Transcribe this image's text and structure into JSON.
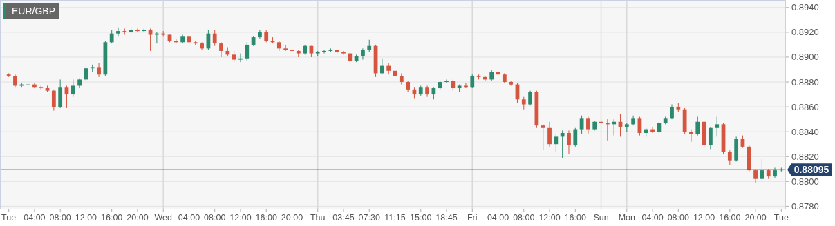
{
  "chart_data": {
    "type": "candlestick",
    "title": "EUR/GBP",
    "categories": [
      "Tue",
      null,
      null,
      null,
      "04:00",
      null,
      null,
      null,
      "08:00",
      null,
      null,
      null,
      "12:00",
      null,
      null,
      null,
      "16:00",
      null,
      null,
      null,
      "20:00",
      null,
      null,
      null,
      "Wed",
      null,
      null,
      null,
      "04:00",
      null,
      null,
      null,
      "08:00",
      null,
      null,
      null,
      "12:00",
      null,
      null,
      null,
      "16:00",
      null,
      null,
      null,
      "20:00",
      null,
      null,
      null,
      "Thu",
      null,
      null,
      null,
      "03:45",
      null,
      null,
      null,
      "07:30",
      null,
      null,
      null,
      "11:15",
      null,
      null,
      null,
      "15:00",
      null,
      null,
      null,
      "18:45",
      null,
      null,
      null,
      "Fri",
      null,
      null,
      null,
      "04:00",
      null,
      null,
      null,
      "08:00",
      null,
      null,
      null,
      "12:00",
      null,
      null,
      null,
      "16:00",
      null,
      null,
      null,
      "Sun",
      null,
      null,
      null,
      "Mon",
      null,
      null,
      null,
      "04:00",
      null,
      null,
      null,
      "08:00",
      null,
      null,
      null,
      "12:00",
      null,
      null,
      null,
      "16:00",
      null,
      null,
      null,
      "20:00",
      null,
      null,
      null,
      "Tue"
    ],
    "ohlc": [
      [
        0.8886,
        0.8887,
        0.8884,
        0.8885
      ],
      [
        0.8885,
        0.8886,
        0.8876,
        0.8877
      ],
      [
        0.8877,
        0.8879,
        0.8876,
        0.8878
      ],
      [
        0.8878,
        0.8879,
        0.8877,
        0.8878
      ],
      [
        0.8878,
        0.8879,
        0.8875,
        0.8876
      ],
      [
        0.8876,
        0.8877,
        0.8874,
        0.8875
      ],
      [
        0.8875,
        0.8877,
        0.8872,
        0.8873
      ],
      [
        0.8873,
        0.8874,
        0.8857,
        0.886
      ],
      [
        0.886,
        0.8882,
        0.8859,
        0.8876
      ],
      [
        0.8876,
        0.8877,
        0.8859,
        0.887
      ],
      [
        0.887,
        0.8882,
        0.8868,
        0.8877
      ],
      [
        0.8877,
        0.8883,
        0.8875,
        0.8882
      ],
      [
        0.8882,
        0.8893,
        0.8881,
        0.8891
      ],
      [
        0.8891,
        0.8894,
        0.8888,
        0.8892
      ],
      [
        0.8892,
        0.8895,
        0.8884,
        0.8886
      ],
      [
        0.8886,
        0.8913,
        0.8885,
        0.8912
      ],
      [
        0.8912,
        0.8922,
        0.8911,
        0.8919
      ],
      [
        0.8919,
        0.8924,
        0.8917,
        0.8921
      ],
      [
        0.8921,
        0.8923,
        0.8918,
        0.892
      ],
      [
        0.892,
        0.8924,
        0.8919,
        0.8922
      ],
      [
        0.8922,
        0.8923,
        0.892,
        0.8921
      ],
      [
        0.8921,
        0.8923,
        0.892,
        0.8922
      ],
      [
        0.8922,
        0.8923,
        0.8905,
        0.8918
      ],
      [
        0.8918,
        0.892,
        0.8911,
        0.8919
      ],
      [
        0.8919,
        0.8921,
        0.8917,
        0.8918
      ],
      [
        0.8918,
        0.8918,
        0.8912,
        0.8913
      ],
      [
        0.8913,
        0.8915,
        0.8911,
        0.8912
      ],
      [
        0.8912,
        0.8918,
        0.8911,
        0.8917
      ],
      [
        0.8917,
        0.8918,
        0.8911,
        0.8912
      ],
      [
        0.8912,
        0.8913,
        0.891,
        0.8911
      ],
      [
        0.8911,
        0.8912,
        0.8906,
        0.8907
      ],
      [
        0.8907,
        0.8922,
        0.8906,
        0.8919
      ],
      [
        0.8919,
        0.8922,
        0.8909,
        0.8911
      ],
      [
        0.8911,
        0.8912,
        0.89,
        0.8905
      ],
      [
        0.8905,
        0.8908,
        0.8901,
        0.8902
      ],
      [
        0.8902,
        0.8905,
        0.8896,
        0.8898
      ],
      [
        0.8898,
        0.8903,
        0.8896,
        0.8899
      ],
      [
        0.8899,
        0.8912,
        0.8897,
        0.891
      ],
      [
        0.891,
        0.8917,
        0.8909,
        0.8916
      ],
      [
        0.8916,
        0.8922,
        0.8915,
        0.892
      ],
      [
        0.892,
        0.8922,
        0.8912,
        0.8913
      ],
      [
        0.8913,
        0.8916,
        0.8911,
        0.8912
      ],
      [
        0.8912,
        0.8913,
        0.8905,
        0.8907
      ],
      [
        0.8907,
        0.891,
        0.8905,
        0.8906
      ],
      [
        0.8906,
        0.8908,
        0.8904,
        0.8905
      ],
      [
        0.8905,
        0.8906,
        0.89,
        0.8903
      ],
      [
        0.8903,
        0.891,
        0.8902,
        0.8909
      ],
      [
        0.8909,
        0.8909,
        0.89,
        0.8903
      ],
      [
        0.8903,
        0.8905,
        0.8901,
        0.8904
      ],
      [
        0.8904,
        0.8906,
        0.8903,
        0.8905
      ],
      [
        0.8905,
        0.8907,
        0.8904,
        0.8906
      ],
      [
        0.8906,
        0.8906,
        0.8903,
        0.8904
      ],
      [
        0.8904,
        0.8905,
        0.8902,
        0.8903
      ],
      [
        0.8903,
        0.8903,
        0.8896,
        0.8897
      ],
      [
        0.8897,
        0.8902,
        0.8896,
        0.8901
      ],
      [
        0.8901,
        0.8907,
        0.8898,
        0.8906
      ],
      [
        0.8906,
        0.8914,
        0.8904,
        0.8909
      ],
      [
        0.8909,
        0.891,
        0.8884,
        0.8887
      ],
      [
        0.8887,
        0.8899,
        0.8886,
        0.8893
      ],
      [
        0.8893,
        0.8895,
        0.8886,
        0.8889
      ],
      [
        0.8889,
        0.8894,
        0.8884,
        0.8885
      ],
      [
        0.8885,
        0.8887,
        0.8878,
        0.888
      ],
      [
        0.888,
        0.8881,
        0.8872,
        0.8874
      ],
      [
        0.8874,
        0.8876,
        0.8867,
        0.887
      ],
      [
        0.887,
        0.8877,
        0.8869,
        0.8876
      ],
      [
        0.8876,
        0.8877,
        0.8868,
        0.887
      ],
      [
        0.887,
        0.8876,
        0.8866,
        0.8875
      ],
      [
        0.8875,
        0.8881,
        0.8874,
        0.888
      ],
      [
        0.888,
        0.8882,
        0.8879,
        0.8881
      ],
      [
        0.8881,
        0.8882,
        0.8873,
        0.8875
      ],
      [
        0.8875,
        0.8878,
        0.8872,
        0.8877
      ],
      [
        0.8877,
        0.8879,
        0.8875,
        0.8876
      ],
      [
        0.8876,
        0.8886,
        0.8875,
        0.8885
      ],
      [
        0.8885,
        0.8886,
        0.8882,
        0.8884
      ],
      [
        0.8884,
        0.8885,
        0.8881,
        0.8882
      ],
      [
        0.8882,
        0.889,
        0.8881,
        0.8888
      ],
      [
        0.8888,
        0.8889,
        0.8885,
        0.8886
      ],
      [
        0.8886,
        0.8887,
        0.8879,
        0.888
      ],
      [
        0.888,
        0.8881,
        0.8877,
        0.8878
      ],
      [
        0.8878,
        0.8879,
        0.8863,
        0.8866
      ],
      [
        0.8866,
        0.8868,
        0.8858,
        0.8862
      ],
      [
        0.8862,
        0.8873,
        0.8861,
        0.8872
      ],
      [
        0.8872,
        0.8873,
        0.8843,
        0.8845
      ],
      [
        0.8845,
        0.8846,
        0.8825,
        0.8843
      ],
      [
        0.8843,
        0.8848,
        0.8828,
        0.883
      ],
      [
        0.883,
        0.8838,
        0.8824,
        0.8836
      ],
      [
        0.8836,
        0.8841,
        0.8819,
        0.8839
      ],
      [
        0.8839,
        0.8841,
        0.8822,
        0.8829
      ],
      [
        0.8829,
        0.8843,
        0.8828,
        0.8842
      ],
      [
        0.8842,
        0.8853,
        0.8838,
        0.8851
      ],
      [
        0.8851,
        0.8852,
        0.8838,
        0.8842
      ],
      [
        0.8842,
        0.8849,
        0.8841,
        0.8848
      ],
      [
        0.8848,
        0.885,
        0.8845,
        0.8847
      ],
      [
        0.8847,
        0.885,
        0.8833,
        0.8846
      ],
      [
        0.8846,
        0.885,
        0.8837,
        0.8848
      ],
      [
        0.8848,
        0.8854,
        0.8836,
        0.8844
      ],
      [
        0.8844,
        0.8847,
        0.884,
        0.8846
      ],
      [
        0.8846,
        0.8853,
        0.8845,
        0.8851
      ],
      [
        0.8851,
        0.8852,
        0.8837,
        0.8839
      ],
      [
        0.8839,
        0.8843,
        0.8836,
        0.8842
      ],
      [
        0.8842,
        0.8844,
        0.8839,
        0.884
      ],
      [
        0.884,
        0.8848,
        0.8839,
        0.8847
      ],
      [
        0.8847,
        0.8852,
        0.8846,
        0.8851
      ],
      [
        0.8851,
        0.8862,
        0.885,
        0.886
      ],
      [
        0.886,
        0.8863,
        0.8856,
        0.8858
      ],
      [
        0.8858,
        0.8859,
        0.8838,
        0.884
      ],
      [
        0.884,
        0.8842,
        0.8832,
        0.8838
      ],
      [
        0.8838,
        0.8852,
        0.8837,
        0.8848
      ],
      [
        0.8848,
        0.8849,
        0.8828,
        0.8829
      ],
      [
        0.8829,
        0.8844,
        0.8826,
        0.8843
      ],
      [
        0.8843,
        0.8852,
        0.8836,
        0.8846
      ],
      [
        0.8846,
        0.8847,
        0.8822,
        0.8824
      ],
      [
        0.8824,
        0.8825,
        0.8813,
        0.8817
      ],
      [
        0.8817,
        0.8836,
        0.8816,
        0.8834
      ],
      [
        0.8834,
        0.8837,
        0.8827,
        0.8828
      ],
      [
        0.8828,
        0.8829,
        0.8808,
        0.8809
      ],
      [
        0.8809,
        0.881,
        0.8799,
        0.8802
      ],
      [
        0.8802,
        0.8818,
        0.8801,
        0.8809
      ],
      [
        0.8809,
        0.881,
        0.8802,
        0.8804
      ],
      [
        0.8804,
        0.8811,
        0.8803,
        0.8809
      ],
      [
        0.8809,
        0.8811,
        0.8808,
        0.88095
      ]
    ],
    "colors": [
      "#d5553f",
      "#d5553f",
      "#2b8a6e",
      "#2b8a6e",
      "#d5553f",
      "#d5553f",
      "#d5553f",
      "#d5553f",
      "#2b8a6e",
      "#d5553f",
      "#2b8a6e",
      "#2b8a6e",
      "#2b8a6e",
      "#2b8a6e",
      "#d5553f",
      "#2b8a6e",
      "#2b8a6e",
      "#2b8a6e",
      "#d5553f",
      "#2b8a6e",
      "#d5553f",
      "#2b8a6e",
      "#d5553f",
      "#2b8a6e",
      "#d5553f",
      "#d5553f",
      "#d5553f",
      "#2b8a6e",
      "#d5553f",
      "#d5553f",
      "#d5553f",
      "#2b8a6e",
      "#d5553f",
      "#d5553f",
      "#d5553f",
      "#d5553f",
      "#2b8a6e",
      "#2b8a6e",
      "#2b8a6e",
      "#2b8a6e",
      "#d5553f",
      "#d5553f",
      "#d5553f",
      "#d5553f",
      "#d5553f",
      "#d5553f",
      "#2b8a6e",
      "#d5553f",
      "#2b8a6e",
      "#2b8a6e",
      "#2b8a6e",
      "#d5553f",
      "#d5553f",
      "#d5553f",
      "#2b8a6e",
      "#2b8a6e",
      "#2b8a6e",
      "#d5553f",
      "#2b8a6e",
      "#d5553f",
      "#d5553f",
      "#d5553f",
      "#d5553f",
      "#d5553f",
      "#2b8a6e",
      "#d5553f",
      "#2b8a6e",
      "#2b8a6e",
      "#2b8a6e",
      "#d5553f",
      "#2b8a6e",
      "#d5553f",
      "#2b8a6e",
      "#d5553f",
      "#d5553f",
      "#2b8a6e",
      "#d5553f",
      "#d5553f",
      "#d5553f",
      "#d5553f",
      "#d5553f",
      "#2b8a6e",
      "#d5553f",
      "#d5553f",
      "#d5553f",
      "#2b8a6e",
      "#2b8a6e",
      "#d5553f",
      "#2b8a6e",
      "#2b8a6e",
      "#d5553f",
      "#2b8a6e",
      "#d5553f",
      "#d5553f",
      "#2b8a6e",
      "#d5553f",
      "#2b8a6e",
      "#2b8a6e",
      "#d5553f",
      "#2b8a6e",
      "#d5553f",
      "#2b8a6e",
      "#2b8a6e",
      "#2b8a6e",
      "#d5553f",
      "#d5553f",
      "#d5553f",
      "#2b8a6e",
      "#d5553f",
      "#2b8a6e",
      "#2b8a6e",
      "#d5553f",
      "#d5553f",
      "#2b8a6e",
      "#d5553f",
      "#d5553f",
      "#d5553f",
      "#2b8a6e",
      "#d5553f",
      "#2b8a6e",
      "#2b8a6e"
    ],
    "ylim": [
      0.8778,
      0.8946
    ],
    "yticks": [
      {
        "value": 0.878,
        "label": "0.8780"
      },
      {
        "value": 0.88,
        "label": "0.8800"
      },
      {
        "value": 0.882,
        "label": "0.8820"
      },
      {
        "value": 0.884,
        "label": "0.8840"
      },
      {
        "value": 0.886,
        "label": "0.8860"
      },
      {
        "value": 0.888,
        "label": "0.8880"
      },
      {
        "value": 0.89,
        "label": "0.8900"
      },
      {
        "value": 0.892,
        "label": "0.8920"
      },
      {
        "value": 0.894,
        "label": "0.8940"
      }
    ],
    "grid": "y",
    "ref_lines": [
      {
        "axis": "y",
        "value": 0.88095,
        "label": "0.88095",
        "color": "#24426b"
      },
      {
        "axis": "x",
        "value": "Wed",
        "color": "#d9d9d9"
      },
      {
        "axis": "x",
        "value": "Thu",
        "color": "#d9d9d9"
      },
      {
        "axis": "x",
        "value": "Fri",
        "color": "#d9d9d9"
      },
      {
        "axis": "x",
        "value": "Sun",
        "color": "#d9d9d9"
      },
      {
        "axis": "x",
        "value": "Mon",
        "color": "#d9d9d9"
      }
    ]
  }
}
